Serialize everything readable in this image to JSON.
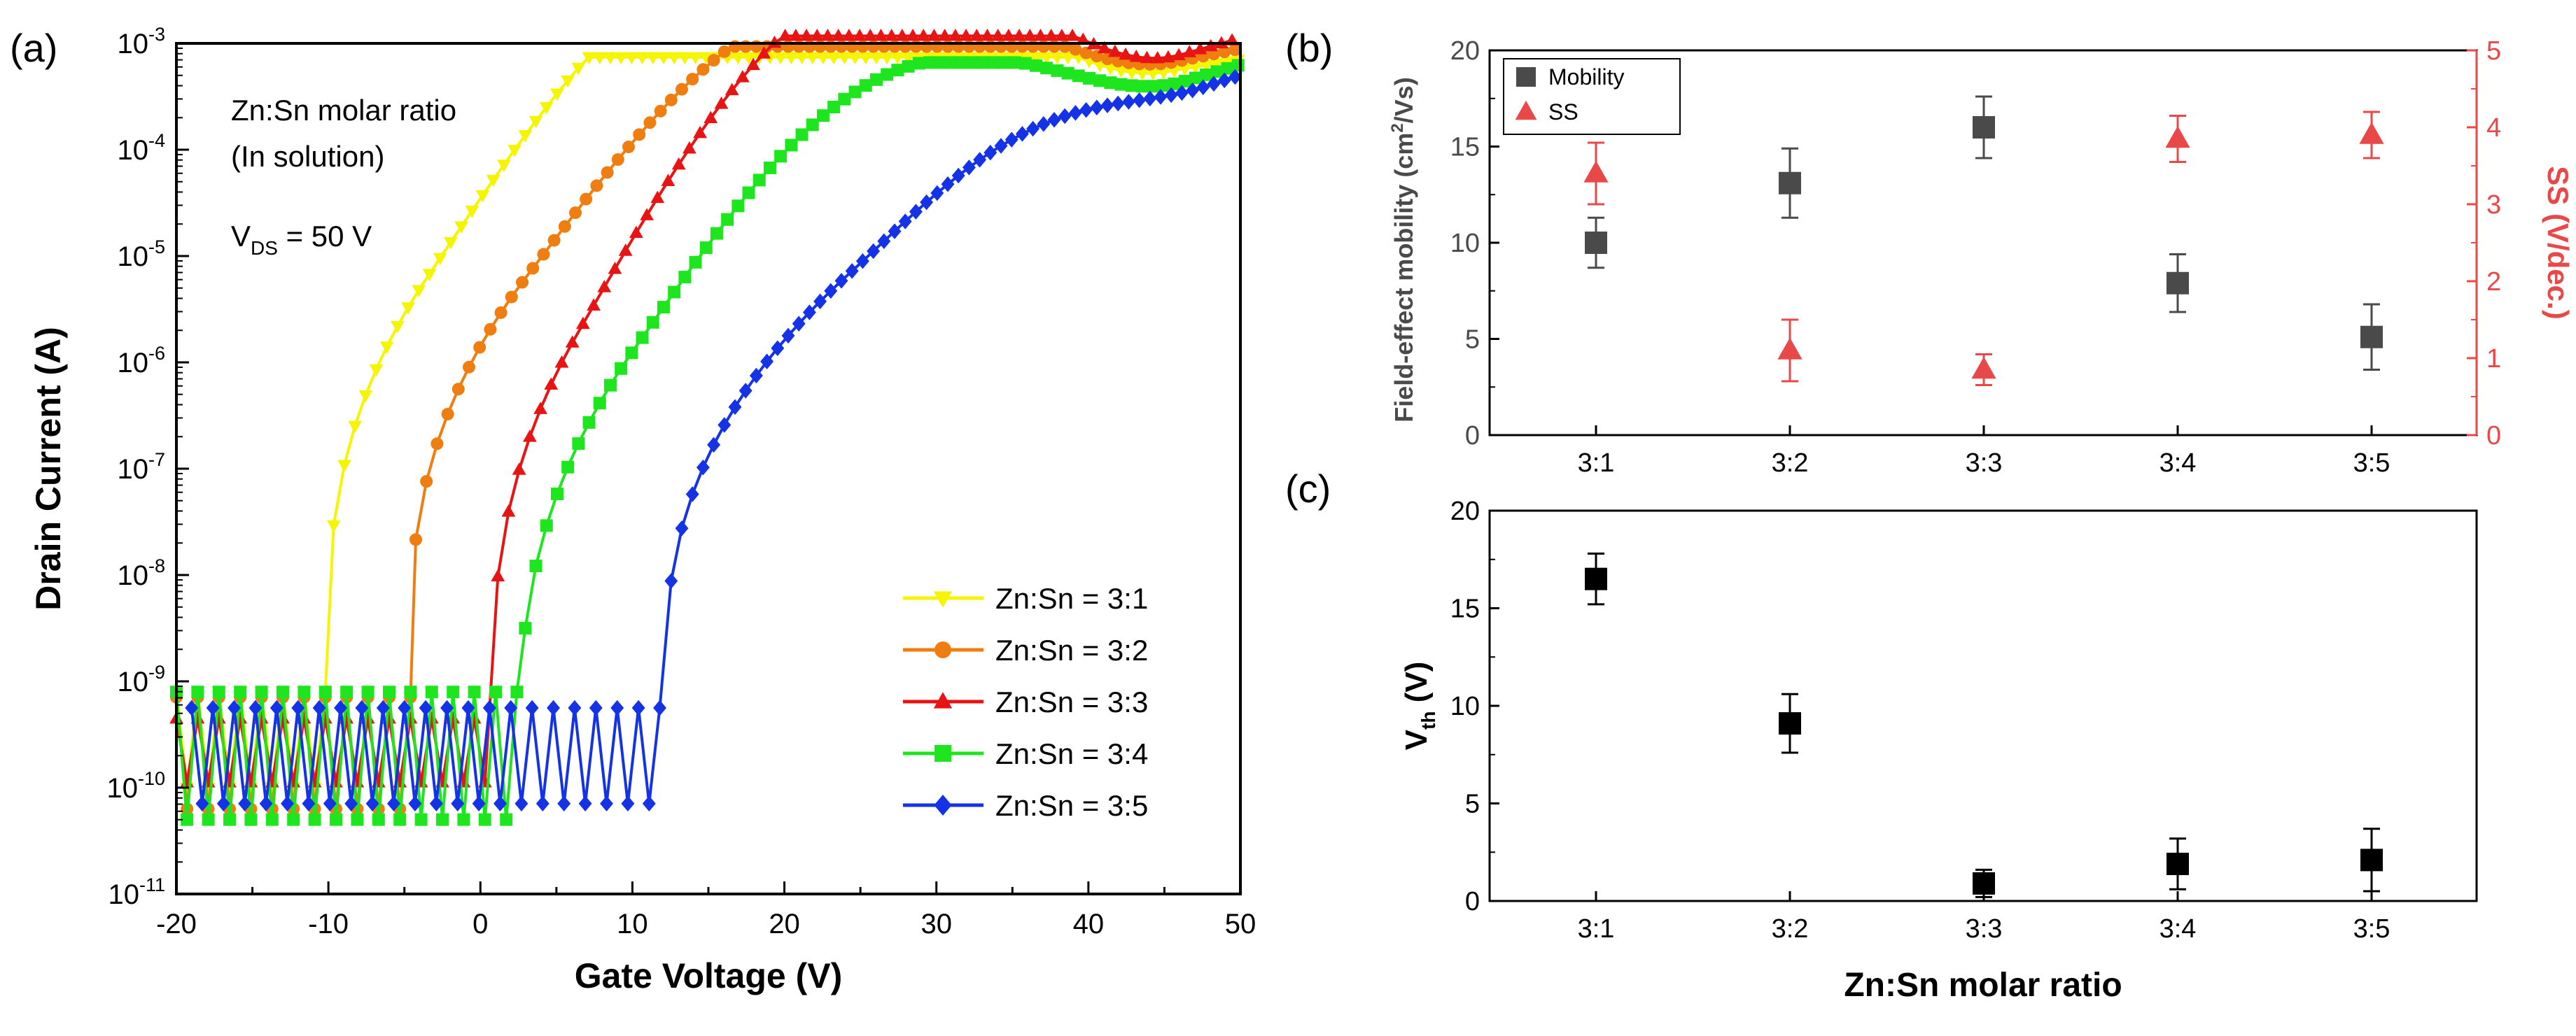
{
  "chart_data": [
    {
      "panel_label": "(a)",
      "type": "line",
      "title": "",
      "xlabel": "Gate Voltage (V)",
      "ylabel": "Drain Current (A)",
      "xlim": [
        -20,
        50
      ],
      "ylim_log10": [
        -11,
        -3
      ],
      "yscale": "log",
      "xticks": [
        "-20",
        "-10",
        "0",
        "10",
        "20",
        "30",
        "40",
        "50"
      ],
      "yticks_exponent": [
        "-3",
        "-4",
        "-5",
        "-6",
        "-7",
        "-8",
        "-9",
        "-10",
        "-11"
      ],
      "ytick_base": "10",
      "annotations": [
        "Zn:Sn molar ratio",
        "(In solution)"
      ],
      "vds_annotation": {
        "main": "V",
        "sub": "DS",
        "rest": " = 50 V"
      },
      "legend_position": "lower-right",
      "series": [
        {
          "name": "Zn:Sn = 3:1",
          "color": "#f5f500",
          "marker": "triangle-down",
          "von": -10.0,
          "log_on": -8.5,
          "kink": [
            -3.5,
            -5.2
          ],
          "end": -3.15,
          "off_lo": -10.0,
          "off_hi": -9.1,
          "sweep_start": -20
        },
        {
          "name": "Zn:Sn = 3:2",
          "color": "#f07d0f",
          "marker": "circle",
          "von": -4.6,
          "log_on": -8.6,
          "kink": [
            3.0,
            -5.2
          ],
          "end": -3.05,
          "off_lo": -10.2,
          "off_hi": -9.15,
          "sweep_start": -20
        },
        {
          "name": "Zn:Sn = 3:3",
          "color": "#e81414",
          "marker": "triangle-up",
          "von": 0.8,
          "log_on": -9.05,
          "kink": [
            6.5,
            -5.7
          ],
          "end": -2.95,
          "off_lo": -9.95,
          "off_hi": -9.35,
          "sweep_start": -20
        },
        {
          "name": "Zn:Sn = 3:4",
          "color": "#1ee61e",
          "marker": "square",
          "von": 2.6,
          "log_on": -9.5,
          "kink": [
            10.0,
            -5.9
          ],
          "end": -3.2,
          "off_lo": -10.3,
          "off_hi": -9.1,
          "sweep_start": -20
        },
        {
          "name": "Zn:Sn = 3:5",
          "color": "#1432e6",
          "marker": "diamond",
          "von": 12.2,
          "log_on": -8.9,
          "kink": [
            24.0,
            -5.2
          ],
          "end": -3.3,
          "off_lo": -10.15,
          "off_hi": -9.25,
          "sweep_start": -19
        }
      ]
    },
    {
      "panel_label": "(b)",
      "type": "scatter",
      "title": "",
      "categories": [
        "3:1",
        "3:2",
        "3:3",
        "3:4",
        "3:5"
      ],
      "ylabel_left": {
        "pre": "Field-effect mobility (cm",
        "sup": "2",
        "post": "/Vs)"
      },
      "ylabel_right": "SS (V/dec.)",
      "ylim_left": [
        0,
        20
      ],
      "ylim_right": [
        0,
        5
      ],
      "yticks_left": [
        "0",
        "5",
        "10",
        "15",
        "20"
      ],
      "yticks_right": [
        "0",
        "1",
        "2",
        "3",
        "4",
        "5"
      ],
      "right_axis_color": "#e84848",
      "legend_position": "top-left",
      "series": [
        {
          "name": "Mobility",
          "axis": "left",
          "color": "#4a4a4a",
          "marker": "square",
          "values": [
            10.0,
            13.1,
            16.0,
            7.9,
            5.1
          ],
          "errors": [
            1.3,
            1.8,
            1.6,
            1.5,
            1.7
          ]
        },
        {
          "name": "SS",
          "axis": "right",
          "color": "#e84848",
          "marker": "triangle-up",
          "values": [
            3.4,
            1.1,
            0.85,
            3.85,
            3.9
          ],
          "errors": [
            0.4,
            0.4,
            0.2,
            0.3,
            0.3
          ]
        }
      ]
    },
    {
      "panel_label": "(c)",
      "type": "scatter",
      "title": "",
      "categories": [
        "3:1",
        "3:2",
        "3:3",
        "3:4",
        "3:5"
      ],
      "xlabel": "Zn:Sn molar ratio",
      "ylabel": {
        "main": "V",
        "sub": "th",
        "rest": " (V)"
      },
      "ylim": [
        0,
        20
      ],
      "yticks": [
        "0",
        "5",
        "10",
        "15",
        "20"
      ],
      "series": [
        {
          "name": "Vth",
          "color": "#000000",
          "marker": "square",
          "values": [
            16.5,
            9.1,
            0.9,
            1.9,
            2.1
          ],
          "errors": [
            1.3,
            1.5,
            0.7,
            1.3,
            1.6
          ]
        }
      ]
    }
  ]
}
